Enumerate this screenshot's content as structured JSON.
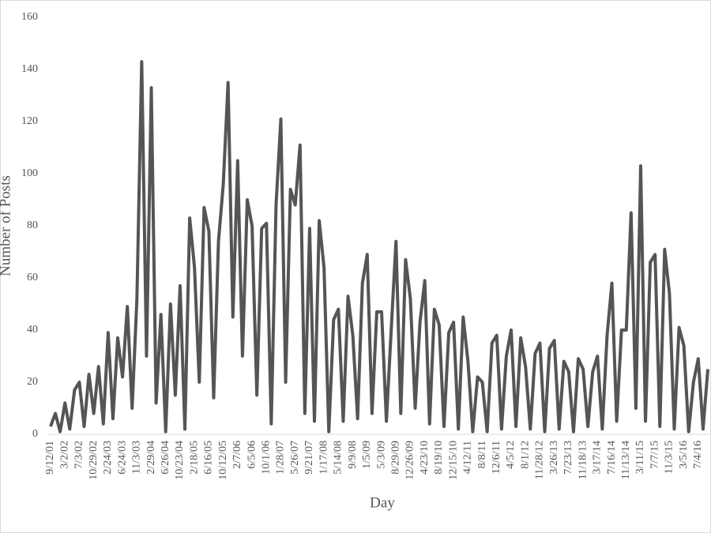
{
  "chart_data": {
    "type": "line",
    "x_label": "Day",
    "y_label": "Number of Posts",
    "categories": [
      "9/12/01",
      null,
      null,
      "3/2/02",
      null,
      null,
      "7/3/02",
      null,
      null,
      "10/29/02",
      null,
      null,
      "2/24/03",
      null,
      null,
      "6/24/03",
      null,
      null,
      "11/3/03",
      null,
      null,
      "2/29/04",
      null,
      null,
      "6/26/04",
      null,
      null,
      "10/23/04",
      null,
      null,
      "2/18/05",
      null,
      null,
      "6/16/05",
      null,
      null,
      "10/12/05",
      null,
      null,
      "2/7/06",
      null,
      null,
      "6/5/06",
      null,
      null,
      "10/1/06",
      null,
      null,
      "1/28/07",
      null,
      null,
      "5/26/07",
      null,
      null,
      "9/21/07",
      null,
      null,
      "1/17/08",
      null,
      null,
      "5/14/08",
      null,
      null,
      "9/9/08",
      null,
      null,
      "1/5/09",
      null,
      null,
      "5/3/09",
      null,
      null,
      "8/29/09",
      null,
      null,
      "12/26/09",
      null,
      null,
      "4/23/10",
      null,
      null,
      "8/19/10",
      null,
      null,
      "12/15/10",
      null,
      null,
      "4/12/11",
      null,
      null,
      "8/8/11",
      null,
      null,
      "12/6/11",
      null,
      null,
      "4/5/12",
      null,
      null,
      "8/1/12",
      null,
      null,
      "11/28/12",
      null,
      null,
      "3/26/13",
      null,
      null,
      "7/23/13",
      null,
      null,
      "11/18/13",
      null,
      null,
      "3/17/14",
      null,
      null,
      "7/16/14",
      null,
      null,
      "11/13/14",
      null,
      null,
      "3/11/15",
      null,
      null,
      "7/7/15",
      null,
      null,
      "11/3/15",
      null,
      null,
      "3/5/16",
      null,
      null,
      "7/4/16",
      null,
      null
    ],
    "series": [
      {
        "name": "Number of Posts",
        "color": "#555555",
        "values": [
          3,
          8,
          1,
          12,
          2,
          17,
          20,
          3,
          23,
          8,
          26,
          4,
          39,
          6,
          37,
          22,
          49,
          10,
          52,
          143,
          30,
          133,
          12,
          46,
          1,
          50,
          15,
          57,
          2,
          83,
          64,
          20,
          87,
          78,
          14,
          74,
          96,
          135,
          45,
          105,
          30,
          90,
          80,
          15,
          79,
          81,
          4,
          88,
          121,
          20,
          94,
          88,
          111,
          8,
          79,
          5,
          82,
          64,
          1,
          44,
          48,
          5,
          53,
          38,
          6,
          58,
          69,
          8,
          47,
          47,
          5,
          40,
          74,
          8,
          67,
          52,
          10,
          43,
          59,
          4,
          48,
          42,
          3,
          39,
          43,
          2,
          45,
          28,
          1,
          22,
          20,
          1,
          35,
          38,
          2,
          30,
          40,
          3,
          37,
          26,
          2,
          31,
          35,
          1,
          33,
          36,
          2,
          28,
          24,
          1,
          29,
          25,
          3,
          24,
          30,
          2,
          38,
          58,
          5,
          40,
          40,
          85,
          10,
          103,
          5,
          66,
          69,
          3,
          71,
          54,
          2,
          41,
          34,
          1,
          20,
          29,
          2,
          25
        ]
      }
    ],
    "ylim": [
      0,
      160
    ],
    "yticks": [
      0,
      20,
      40,
      60,
      80,
      100,
      120,
      140,
      160
    ]
  }
}
